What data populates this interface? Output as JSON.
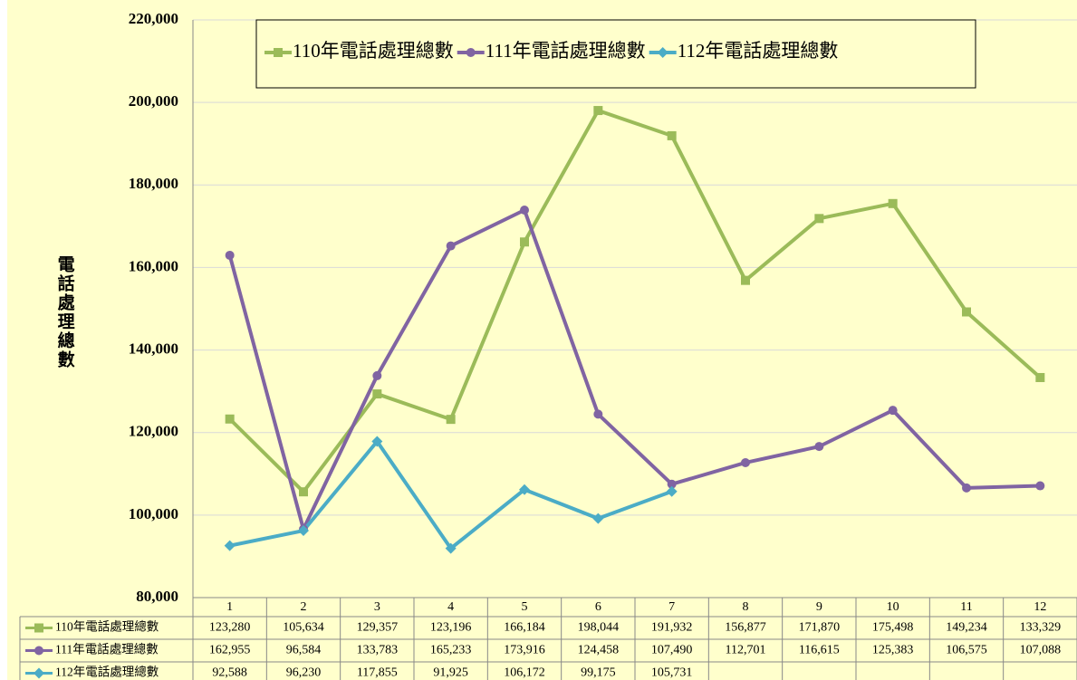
{
  "chart_data": {
    "type": "line",
    "y_label": "電話處理總數",
    "categories": [
      "1",
      "2",
      "3",
      "4",
      "5",
      "6",
      "7",
      "8",
      "9",
      "10",
      "11",
      "12"
    ],
    "series": [
      {
        "name": "110年電話處理總數",
        "color": "#9bbb59",
        "marker": "square",
        "values": [
          123280,
          105634,
          129357,
          123196,
          166184,
          198044,
          191932,
          156877,
          171870,
          175498,
          149234,
          133329
        ],
        "value_labels": [
          "123,280",
          "105,634",
          "129,357",
          "123,196",
          "166,184",
          "198,044",
          "191,932",
          "156,877",
          "171,870",
          "175,498",
          "149,234",
          "133,329"
        ]
      },
      {
        "name": "111年電話處理總數",
        "color": "#8064a2",
        "marker": "circle",
        "values": [
          162955,
          96584,
          133783,
          165233,
          173916,
          124458,
          107490,
          112701,
          116615,
          125383,
          106575,
          107088
        ],
        "value_labels": [
          "162,955",
          "96,584",
          "133,783",
          "165,233",
          "173,916",
          "124,458",
          "107,490",
          "112,701",
          "116,615",
          "125,383",
          "106,575",
          "107,088"
        ]
      },
      {
        "name": "112年電話處理總數",
        "color": "#4bacc6",
        "marker": "diamond",
        "values": [
          92588,
          96230,
          117855,
          91925,
          106172,
          99175,
          105731,
          null,
          null,
          null,
          null,
          null
        ],
        "value_labels": [
          "92,588",
          "96,230",
          "117,855",
          "91,925",
          "106,172",
          "99,175",
          "105,731",
          null,
          null,
          null,
          null,
          null
        ]
      }
    ],
    "ylim": [
      80000,
      220000
    ],
    "yticks": [
      {
        "value": 80000,
        "label": "80,000"
      },
      {
        "value": 100000,
        "label": "100,000"
      },
      {
        "value": 120000,
        "label": "120,000"
      },
      {
        "value": 140000,
        "label": "140,000"
      },
      {
        "value": 160000,
        "label": "160,000"
      },
      {
        "value": 180000,
        "label": "180,000"
      },
      {
        "value": 200000,
        "label": "200,000"
      },
      {
        "value": 220000,
        "label": "220,000"
      }
    ],
    "grid": true,
    "legend": "top"
  }
}
